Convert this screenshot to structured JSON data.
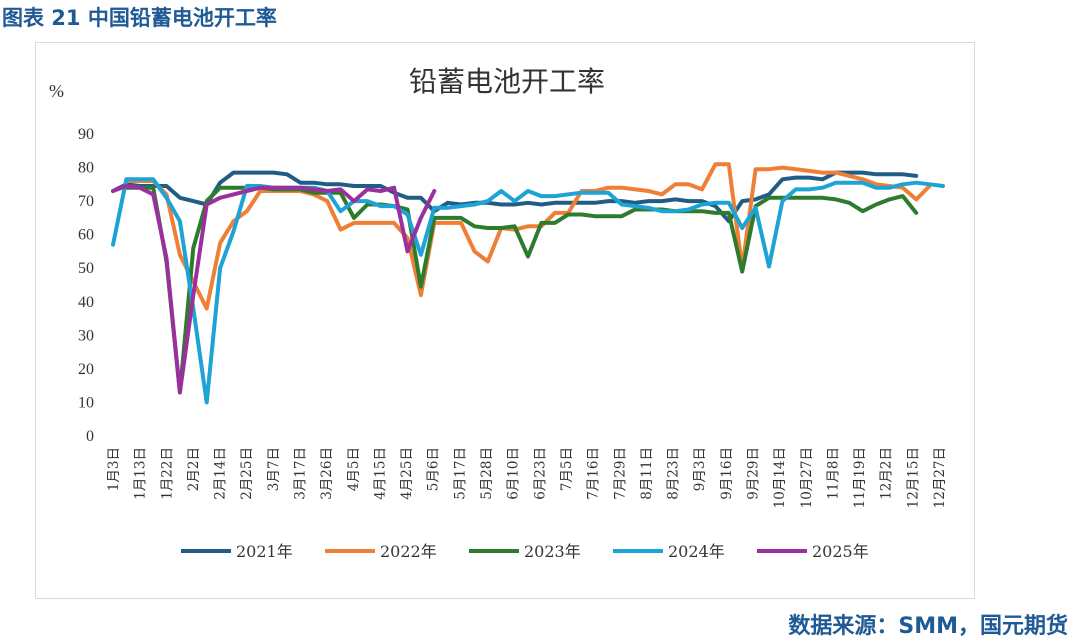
{
  "header": {
    "figure_title": "图表 21 中国铅蓄电池开工率"
  },
  "footer": {
    "source": "数据来源：SMM，国元期货"
  },
  "chart_data": {
    "type": "line",
    "title": "铅蓄电池开工率",
    "ylabel": "%",
    "xlabel": "",
    "ylim": [
      0,
      90
    ],
    "yticks": [
      0,
      10,
      20,
      30,
      40,
      50,
      60,
      70,
      80,
      90
    ],
    "grid": false,
    "legend_position": "bottom",
    "x_tick_labels": [
      "1月3日",
      "1月13日",
      "1月22日",
      "2月2日",
      "2月14日",
      "2月25日",
      "3月7日",
      "3月17日",
      "3月26日",
      "4月5日",
      "4月15日",
      "4月25日",
      "5月6日",
      "5月17日",
      "5月28日",
      "6月10日",
      "6月23日",
      "7月5日",
      "7月16日",
      "7月29日",
      "8月11日",
      "8月23日",
      "9月3日",
      "9月16日",
      "9月29日",
      "10月14日",
      "10月27日",
      "11月8日",
      "11月19日",
      "12月2日",
      "12月15日",
      "12月27日"
    ],
    "series": [
      {
        "name": "2021年",
        "color": "#215c84",
        "values": [
          73,
          75,
          74.5,
          74.5,
          74.5,
          71,
          70,
          69,
          75.5,
          78.5,
          78.5,
          78.5,
          78.5,
          78,
          75.5,
          75.5,
          75,
          75,
          74.5,
          74.5,
          74.5,
          72.5,
          71,
          71,
          67,
          69.5,
          69,
          69.5,
          69.5,
          69,
          69,
          69.5,
          69,
          69.5,
          69.5,
          69.5,
          69.5,
          70,
          70,
          69.5,
          70,
          70,
          70.5,
          70,
          70,
          68.5,
          64,
          70,
          70.5,
          72,
          76.5,
          77,
          77,
          76.5,
          78.5,
          78.5,
          78.5,
          78,
          78,
          78,
          77.5
        ]
      },
      {
        "name": "2022年",
        "color": "#ef7f36",
        "values": [
          null,
          76,
          76,
          76,
          72,
          54,
          46,
          38,
          57.5,
          64,
          67,
          73,
          73,
          73,
          73,
          72,
          70,
          61.5,
          63.5,
          63.5,
          63.5,
          63.5,
          59,
          42,
          63.5,
          63.5,
          63.5,
          55,
          52,
          62,
          61.5,
          62.5,
          62.5,
          66.5,
          66.5,
          73,
          73,
          74,
          74,
          73.5,
          73,
          72,
          75,
          75,
          73.5,
          81,
          81,
          50,
          79.5,
          79.5,
          80,
          79.5,
          79,
          78.5,
          78.5,
          77.5,
          76.5,
          75,
          74.5,
          74,
          70.5,
          74.5
        ]
      },
      {
        "name": "2023年",
        "color": "#2d7b2d",
        "values": [
          null,
          74,
          74,
          74,
          52,
          13,
          56,
          70,
          74,
          74,
          74,
          74,
          73.5,
          73.5,
          73.5,
          72.5,
          72.5,
          72.5,
          65,
          69,
          69,
          68.5,
          67.5,
          44.5,
          65,
          65,
          65,
          62.5,
          62,
          62,
          62.5,
          53.5,
          63.5,
          63.5,
          66,
          66,
          65.5,
          65.5,
          65.5,
          67.5,
          67.5,
          67.5,
          67,
          67,
          67,
          66.5,
          66.5,
          49,
          68.5,
          71,
          71,
          71,
          71,
          71,
          70.5,
          69.5,
          67,
          69,
          70.5,
          71.5,
          66.5
        ]
      },
      {
        "name": "2024年",
        "color": "#1ea3d6",
        "values": [
          57,
          76.5,
          76.5,
          76.5,
          71,
          64,
          38,
          10,
          50,
          61,
          74.5,
          74.5,
          74,
          74,
          74,
          74,
          73,
          67,
          70,
          70,
          68.5,
          68.5,
          66,
          54,
          68,
          68,
          68.5,
          69,
          70,
          73,
          70,
          73,
          71.5,
          71.5,
          72,
          72.5,
          72.5,
          72.5,
          69,
          68.5,
          68,
          67,
          67,
          67.5,
          69,
          69.5,
          69.5,
          62,
          68,
          50.5,
          70,
          73.5,
          73.5,
          74,
          75.5,
          75.5,
          75.5,
          74,
          74,
          75,
          75.5,
          75,
          74.5
        ]
      },
      {
        "name": "2025年",
        "color": "#9b2f9e",
        "values": [
          73,
          74.5,
          74,
          72,
          53,
          13,
          42,
          69,
          71,
          72,
          73,
          74,
          74,
          74,
          74,
          73.5,
          73,
          73.5,
          70,
          73.5,
          73,
          74,
          55,
          65,
          73
        ]
      }
    ]
  }
}
